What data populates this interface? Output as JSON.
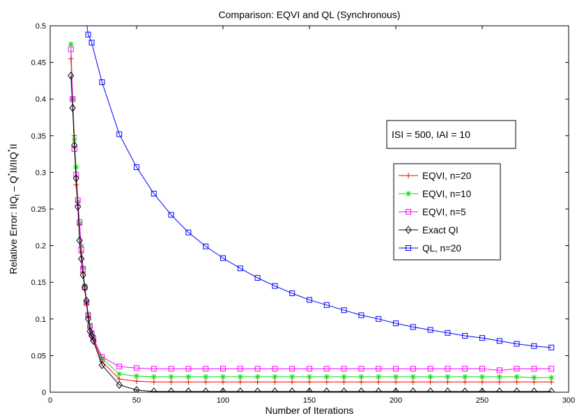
{
  "chart_data": {
    "type": "line",
    "title": "Comparison: EQVI and QL (Synchronous)",
    "xlabel": "Number of Iterations",
    "ylabel": {
      "pre": "Relative Error: IIQ",
      "sub": "t",
      "mid": " – Q",
      "sup1": "*",
      "mid2": "II/IIQ",
      "sup2": "*",
      "post": "II"
    },
    "xlim": [
      0,
      300
    ],
    "ylim": [
      0,
      0.5
    ],
    "xticks": [
      0,
      50,
      100,
      150,
      200,
      250,
      300
    ],
    "yticks": [
      0,
      0.05,
      0.1,
      0.15,
      0.2,
      0.25,
      0.3,
      0.35,
      0.4,
      0.45,
      0.5
    ],
    "grid": false,
    "legend_position": "center-right",
    "annotation": "ISI = 500, IAI = 10",
    "series": [
      {
        "name": "EQVI, n=20",
        "color": "#ff0000",
        "marker": "plus",
        "x": [
          12,
          13,
          14,
          15,
          16,
          17,
          18,
          19,
          20,
          21,
          22,
          23,
          24,
          25,
          30,
          40,
          50,
          60,
          70,
          80,
          90,
          100,
          110,
          120,
          130,
          140,
          150,
          160,
          170,
          180,
          190,
          200,
          210,
          220,
          230,
          240,
          250,
          260,
          270,
          280,
          290
        ],
        "y": [
          0.455,
          0.4,
          0.35,
          0.283,
          0.255,
          0.228,
          0.19,
          0.163,
          0.14,
          0.12,
          0.103,
          0.088,
          0.078,
          0.072,
          0.042,
          0.018,
          0.015,
          0.014,
          0.014,
          0.014,
          0.014,
          0.014,
          0.014,
          0.014,
          0.014,
          0.014,
          0.014,
          0.014,
          0.014,
          0.014,
          0.014,
          0.014,
          0.014,
          0.014,
          0.014,
          0.014,
          0.014,
          0.014,
          0.014,
          0.014,
          0.014
        ]
      },
      {
        "name": "EQVI, n=10",
        "color": "#00dd00",
        "marker": "star",
        "x": [
          12,
          13,
          14,
          15,
          16,
          17,
          18,
          19,
          20,
          21,
          22,
          23,
          24,
          25,
          30,
          40,
          50,
          60,
          70,
          80,
          90,
          100,
          110,
          120,
          130,
          140,
          150,
          160,
          170,
          180,
          190,
          200,
          210,
          220,
          230,
          240,
          250,
          260,
          270,
          280,
          290
        ],
        "y": [
          0.475,
          0.4,
          0.345,
          0.307,
          0.26,
          0.23,
          0.2,
          0.17,
          0.145,
          0.123,
          0.107,
          0.092,
          0.082,
          0.075,
          0.046,
          0.025,
          0.022,
          0.021,
          0.021,
          0.021,
          0.021,
          0.021,
          0.021,
          0.021,
          0.021,
          0.021,
          0.021,
          0.021,
          0.021,
          0.021,
          0.021,
          0.021,
          0.021,
          0.021,
          0.021,
          0.021,
          0.021,
          0.021,
          0.021,
          0.02,
          0.02
        ]
      },
      {
        "name": "EQVI, n=5",
        "color": "#ff00ff",
        "marker": "square",
        "x": [
          12,
          13,
          14,
          15,
          16,
          17,
          18,
          19,
          20,
          21,
          22,
          23,
          24,
          25,
          30,
          40,
          50,
          60,
          70,
          80,
          90,
          100,
          110,
          120,
          130,
          140,
          150,
          160,
          170,
          180,
          190,
          200,
          210,
          220,
          230,
          240,
          250,
          260,
          270,
          280,
          290
        ],
        "y": [
          0.468,
          0.4,
          0.332,
          0.297,
          0.262,
          0.232,
          0.195,
          0.168,
          0.143,
          0.122,
          0.105,
          0.09,
          0.08,
          0.074,
          0.048,
          0.035,
          0.033,
          0.032,
          0.032,
          0.032,
          0.032,
          0.032,
          0.032,
          0.032,
          0.032,
          0.032,
          0.032,
          0.032,
          0.032,
          0.032,
          0.032,
          0.032,
          0.032,
          0.032,
          0.032,
          0.032,
          0.032,
          0.03,
          0.032,
          0.032,
          0.032
        ]
      },
      {
        "name": "Exact QI",
        "color": "#000000",
        "marker": "diamond",
        "x": [
          12,
          13,
          14,
          15,
          16,
          17,
          18,
          19,
          20,
          21,
          22,
          23,
          24,
          25,
          30,
          40,
          50,
          60,
          70,
          80,
          90,
          100,
          110,
          120,
          130,
          140,
          150,
          160,
          170,
          180,
          190,
          200,
          210,
          220,
          230,
          240,
          250,
          260,
          270,
          280,
          290
        ],
        "y": [
          0.432,
          0.388,
          0.337,
          0.292,
          0.253,
          0.207,
          0.182,
          0.16,
          0.143,
          0.125,
          0.1,
          0.083,
          0.077,
          0.07,
          0.037,
          0.01,
          0.003,
          0.001,
          0.001,
          0.001,
          0.001,
          0.001,
          0.001,
          0.001,
          0.001,
          0.001,
          0.001,
          0.001,
          0.001,
          0.001,
          0.001,
          0.001,
          0.001,
          0.001,
          0.001,
          0.001,
          0.001,
          0.001,
          0.001,
          0.001,
          0.001
        ]
      },
      {
        "name": "QL, n=20",
        "color": "#0000ff",
        "marker": "square",
        "x": [
          20,
          22,
          24,
          30,
          40,
          50,
          60,
          70,
          80,
          90,
          100,
          110,
          120,
          130,
          140,
          150,
          160,
          170,
          180,
          190,
          200,
          210,
          220,
          230,
          240,
          250,
          260,
          270,
          280,
          290
        ],
        "y": [
          0.522,
          0.488,
          0.477,
          0.423,
          0.352,
          0.307,
          0.271,
          0.242,
          0.218,
          0.199,
          0.183,
          0.169,
          0.156,
          0.145,
          0.135,
          0.126,
          0.119,
          0.112,
          0.105,
          0.1,
          0.094,
          0.089,
          0.085,
          0.081,
          0.077,
          0.074,
          0.07,
          0.066,
          0.063,
          0.061
        ]
      }
    ]
  }
}
